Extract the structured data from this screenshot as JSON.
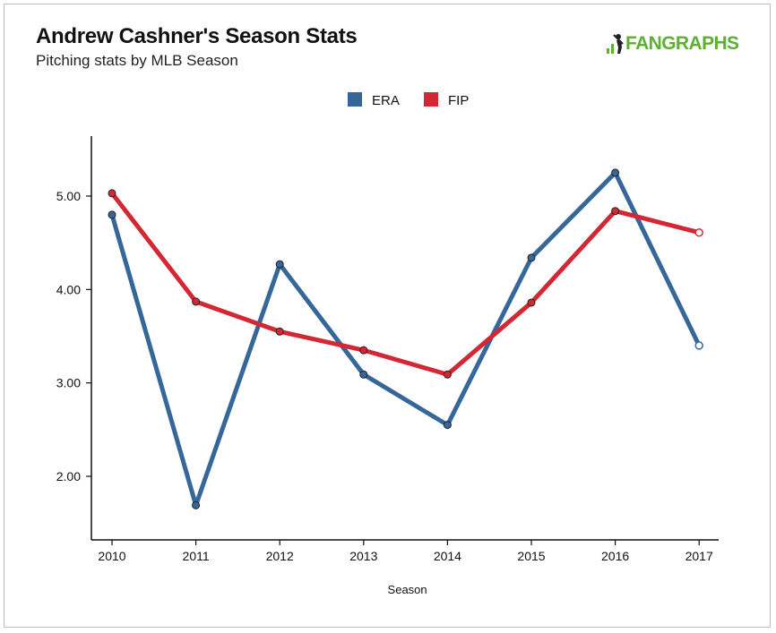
{
  "header": {
    "title": "Andrew Cashner's Season Stats",
    "subtitle": "Pitching stats by MLB Season",
    "logo_text": "FANGRAPHS",
    "logo_color": "#5cb130"
  },
  "chart_data": {
    "type": "line",
    "title": "Andrew Cashner's Season Stats",
    "subtitle": "Pitching stats by MLB Season",
    "xlabel": "Season",
    "ylabel": "",
    "x": [
      "2010",
      "2011",
      "2012",
      "2013",
      "2014",
      "2015",
      "2016",
      "2017"
    ],
    "yticks": [
      "2.00",
      "3.00",
      "4.00",
      "5.00"
    ],
    "ylim": [
      1.3,
      5.65
    ],
    "grid": false,
    "legend_position": "top-center",
    "series": [
      {
        "name": "ERA",
        "color": "#366799",
        "values": [
          4.8,
          1.69,
          4.27,
          3.09,
          2.55,
          4.34,
          5.25,
          3.4
        ]
      },
      {
        "name": "FIP",
        "color": "#d42734",
        "values": [
          5.03,
          3.87,
          3.55,
          3.35,
          3.09,
          3.86,
          4.84,
          4.61
        ]
      }
    ]
  }
}
